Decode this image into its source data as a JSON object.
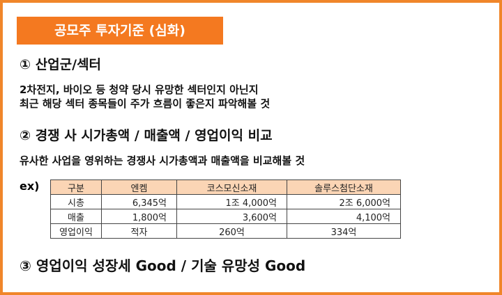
{
  "header": {
    "title": "공모주 투자기준 (심화)"
  },
  "sections": [
    {
      "heading": "① 산업군/섹터",
      "lines": [
        "2차전지, 바이오 등 청약 당시 유망한 섹터인지 아닌지",
        "최근 해당 섹터 종목들이 주가 흐름이 좋은지 파악해볼 것"
      ]
    },
    {
      "heading": "② 경쟁 사 시가총액 / 매출액 / 영업이익 비교",
      "lines": [
        "유사한 사업을 영위하는 경쟁사 시가총액과 매출액을 비교해볼 것"
      ]
    },
    {
      "heading": "③  영업이익 성장세 Good / 기술 유망성 Good",
      "lines": []
    }
  ],
  "example_label": "ex)",
  "table": {
    "columns": [
      "구분",
      "엔켐",
      "코스모신소재",
      "솔루스첨단소재"
    ],
    "rows": [
      [
        "시총",
        "6,345억",
        "1조 4,000억",
        "2조 6,000억"
      ],
      [
        "매출",
        "1,800억",
        "3,600억",
        "4,100억"
      ],
      [
        "영업이익",
        "적자",
        "260억",
        "334억"
      ]
    ]
  }
}
